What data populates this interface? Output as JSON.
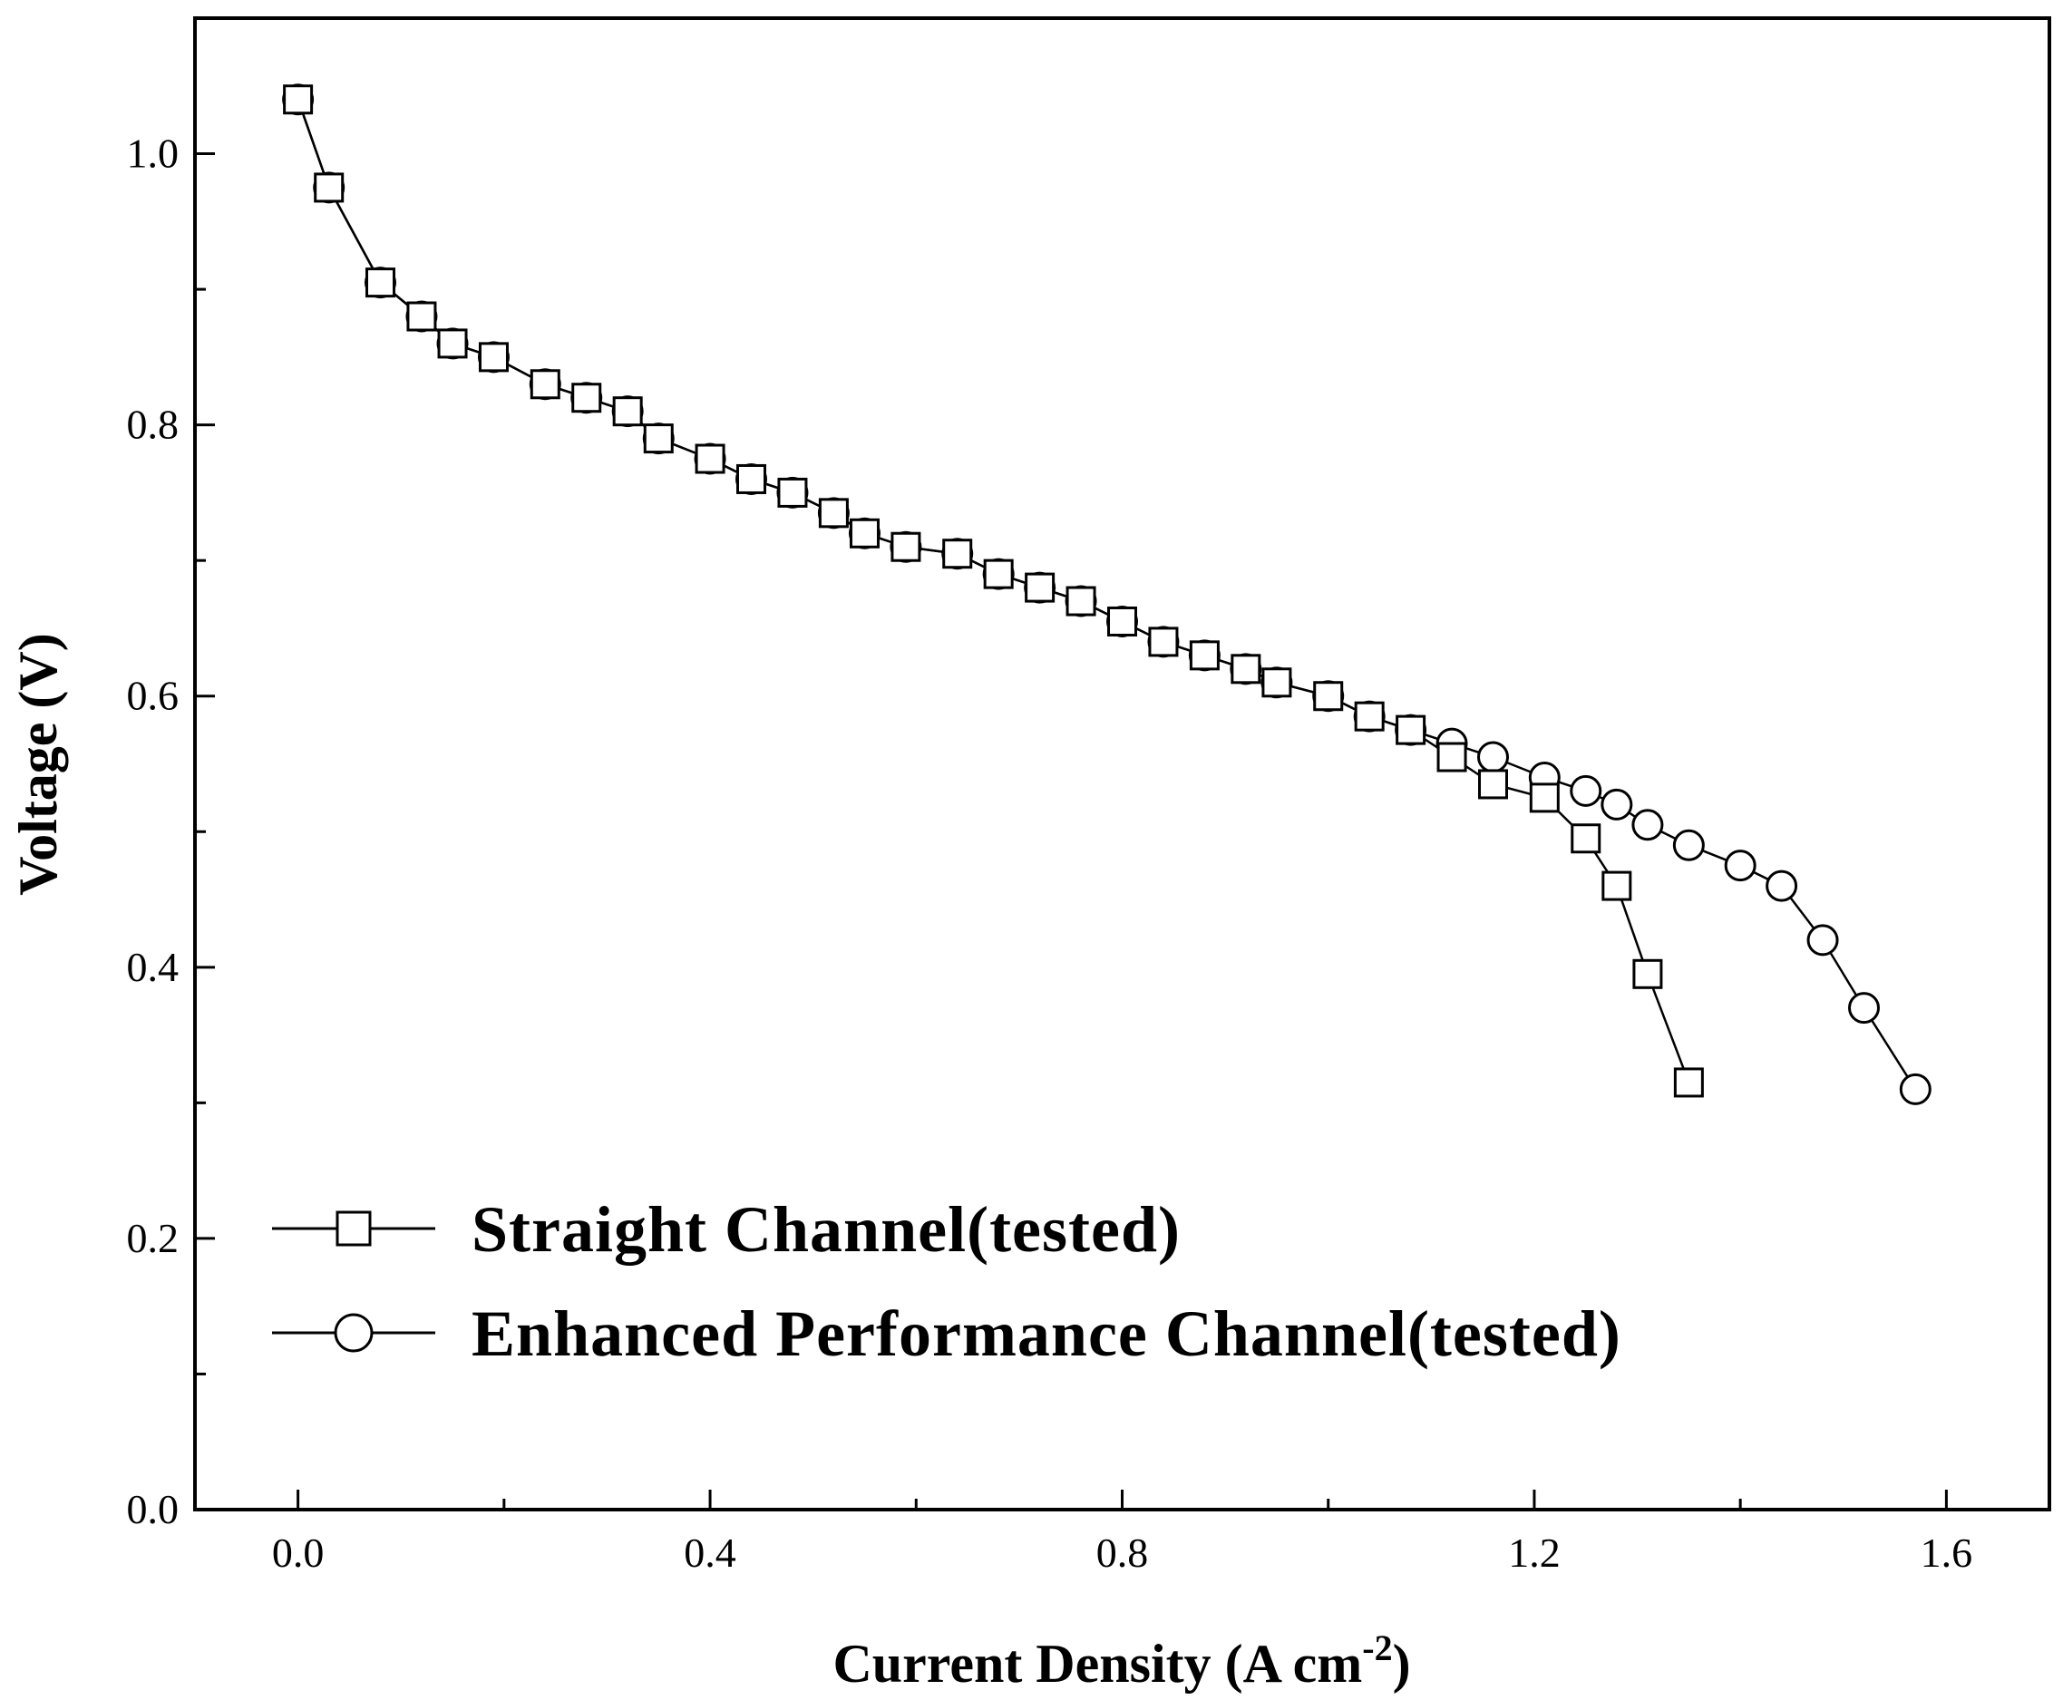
{
  "chart_data": {
    "type": "line",
    "title": "",
    "xlabel": "Current Density (A cm",
    "xlabel_sup": "-2",
    "xlabel_close": ")",
    "ylabel": "Voltage (V)",
    "xlim": [
      -0.1,
      1.7
    ],
    "ylim": [
      0.0,
      1.1
    ],
    "xticks": [
      0.0,
      0.4,
      0.8,
      1.2,
      1.6
    ],
    "xtick_labels": [
      "0.0",
      "0.4",
      "0.8",
      "1.2",
      "1.6"
    ],
    "yticks": [
      0.0,
      0.2,
      0.4,
      0.6,
      0.8,
      1.0
    ],
    "ytick_labels": [
      "0.0",
      "0.2",
      "0.4",
      "0.6",
      "0.8",
      "1.0"
    ],
    "legend_position": "lower-left",
    "series": [
      {
        "name": "Straight Channel(tested)",
        "marker": "square",
        "x": [
          0.0,
          0.03,
          0.08,
          0.12,
          0.15,
          0.19,
          0.24,
          0.28,
          0.32,
          0.35,
          0.4,
          0.44,
          0.48,
          0.52,
          0.55,
          0.59,
          0.64,
          0.68,
          0.72,
          0.76,
          0.8,
          0.84,
          0.88,
          0.92,
          0.95,
          1.0,
          1.04,
          1.08,
          1.12,
          1.16,
          1.21,
          1.25,
          1.28,
          1.31,
          1.35
        ],
        "y": [
          1.04,
          0.975,
          0.905,
          0.88,
          0.86,
          0.85,
          0.83,
          0.82,
          0.81,
          0.79,
          0.775,
          0.76,
          0.75,
          0.735,
          0.72,
          0.71,
          0.705,
          0.69,
          0.68,
          0.67,
          0.655,
          0.64,
          0.63,
          0.62,
          0.61,
          0.6,
          0.585,
          0.575,
          0.555,
          0.535,
          0.525,
          0.495,
          0.46,
          0.395,
          0.315
        ]
      },
      {
        "name": "Enhanced Performance Channel(tested)",
        "marker": "circle",
        "x": [
          0.0,
          0.03,
          0.08,
          0.12,
          0.15,
          0.19,
          0.24,
          0.28,
          0.32,
          0.35,
          0.4,
          0.44,
          0.48,
          0.52,
          0.55,
          0.59,
          0.64,
          0.68,
          0.72,
          0.76,
          0.8,
          0.84,
          0.88,
          0.92,
          0.95,
          1.0,
          1.04,
          1.08,
          1.12,
          1.16,
          1.21,
          1.25,
          1.28,
          1.31,
          1.35,
          1.4,
          1.44,
          1.48,
          1.52,
          1.57
        ],
        "y": [
          1.04,
          0.975,
          0.905,
          0.88,
          0.86,
          0.85,
          0.83,
          0.82,
          0.81,
          0.79,
          0.775,
          0.76,
          0.75,
          0.735,
          0.72,
          0.71,
          0.705,
          0.69,
          0.68,
          0.67,
          0.655,
          0.64,
          0.63,
          0.62,
          0.61,
          0.6,
          0.585,
          0.575,
          0.565,
          0.555,
          0.54,
          0.53,
          0.52,
          0.505,
          0.49,
          0.475,
          0.46,
          0.42,
          0.37,
          0.31
        ]
      }
    ]
  }
}
